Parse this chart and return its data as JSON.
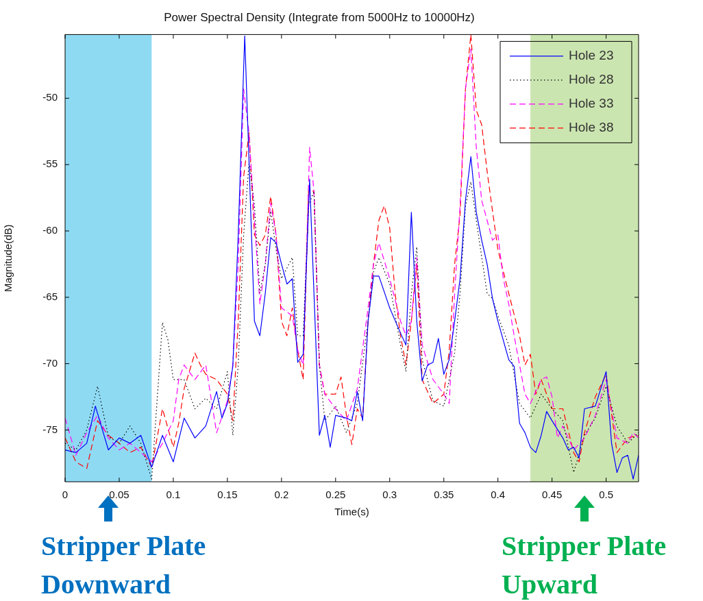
{
  "chart_data": {
    "type": "line",
    "title": "Power Spectral Density (Integrate from 5000Hz to 10000Hz)",
    "xlabel": "Time(s)",
    "ylabel": "Magnitude(dB)",
    "xlim": [
      0,
      0.53
    ],
    "xticks": [
      0,
      0.05,
      0.1,
      0.15,
      0.2,
      0.25,
      0.3,
      0.35,
      0.4,
      0.45,
      0.5
    ],
    "ylim": [
      -78.9,
      -45.2
    ],
    "yticks": [
      -75,
      -70,
      -65,
      -60,
      -55,
      -50
    ],
    "grid": false,
    "legend": "top right",
    "marker": "none",
    "bands": [
      {
        "axis": "x",
        "from": 0,
        "to": 0.08,
        "label": "Stripper Plate Downward",
        "color": "#8fdaf3"
      },
      {
        "axis": "x",
        "from": 0.43,
        "to": 0.53,
        "label": "Stripper Plate Upward",
        "color": "#cbe5b0"
      }
    ],
    "series": [
      {
        "name": "Hole 23",
        "color": "#0000ff",
        "line_style": "solid",
        "x": [
          0,
          0.01,
          0.02,
          0.028,
          0.04,
          0.05,
          0.06,
          0.07,
          0.08,
          0.09,
          0.1,
          0.11,
          0.12,
          0.13,
          0.14,
          0.145,
          0.15,
          0.155,
          0.16,
          0.166,
          0.17,
          0.175,
          0.18,
          0.185,
          0.19,
          0.195,
          0.2,
          0.205,
          0.21,
          0.215,
          0.22,
          0.226,
          0.23,
          0.235,
          0.24,
          0.245,
          0.25,
          0.26,
          0.265,
          0.27,
          0.275,
          0.28,
          0.285,
          0.29,
          0.3,
          0.31,
          0.315,
          0.32,
          0.325,
          0.33,
          0.335,
          0.34,
          0.345,
          0.35,
          0.355,
          0.36,
          0.365,
          0.37,
          0.375,
          0.38,
          0.385,
          0.39,
          0.395,
          0.4,
          0.41,
          0.415,
          0.42,
          0.425,
          0.43,
          0.435,
          0.44,
          0.445,
          0.45,
          0.46,
          0.465,
          0.47,
          0.475,
          0.48,
          0.49,
          0.5,
          0.505,
          0.51,
          0.515,
          0.52,
          0.525,
          0.53
        ],
        "values": [
          -76.5,
          -76.7,
          -76.0,
          -73.2,
          -76.5,
          -75.6,
          -76.0,
          -75.4,
          -77.8,
          -75.4,
          -77.4,
          -74.1,
          -75.6,
          -74.7,
          -72.1,
          -74.1,
          -73.0,
          -70.2,
          -60.3,
          -45.3,
          -54.8,
          -66.8,
          -67.9,
          -64.7,
          -60.5,
          -60.9,
          -62.5,
          -64.0,
          -63.6,
          -69.9,
          -69.3,
          -56.1,
          -64.7,
          -75.4,
          -73.9,
          -76.3,
          -73.9,
          -74.1,
          -74.3,
          -72.1,
          -74.3,
          -66.8,
          -63.4,
          -63.4,
          -65.8,
          -67.7,
          -68.6,
          -58.6,
          -66.8,
          -71.3,
          -70.1,
          -69.9,
          -68.1,
          -70.8,
          -69.7,
          -66.8,
          -63.6,
          -57.7,
          -54.4,
          -58.6,
          -60.7,
          -62.5,
          -65.1,
          -66.8,
          -69.7,
          -70.2,
          -74.5,
          -75.2,
          -76.3,
          -76.7,
          -75.4,
          -73.6,
          -74.3,
          -75.6,
          -76.5,
          -76.3,
          -77.1,
          -73.4,
          -73.2,
          -70.6,
          -76.0,
          -78.2,
          -77.1,
          -76.9,
          -78.7,
          -76.9
        ]
      },
      {
        "name": "Hole 28",
        "color": "#000000",
        "line_style": "dotted",
        "x": [
          0,
          0.01,
          0.02,
          0.03,
          0.04,
          0.05,
          0.06,
          0.07,
          0.08,
          0.09,
          0.095,
          0.1,
          0.11,
          0.12,
          0.13,
          0.14,
          0.15,
          0.155,
          0.16,
          0.165,
          0.17,
          0.175,
          0.18,
          0.185,
          0.19,
          0.195,
          0.2,
          0.21,
          0.215,
          0.22,
          0.225,
          0.23,
          0.235,
          0.24,
          0.25,
          0.26,
          0.27,
          0.28,
          0.285,
          0.29,
          0.3,
          0.31,
          0.315,
          0.32,
          0.325,
          0.33,
          0.34,
          0.35,
          0.36,
          0.365,
          0.37,
          0.375,
          0.38,
          0.39,
          0.395,
          0.4,
          0.41,
          0.42,
          0.43,
          0.44,
          0.45,
          0.46,
          0.47,
          0.48,
          0.49,
          0.5,
          0.51,
          0.52,
          0.53
        ],
        "values": [
          -76.0,
          -76.5,
          -75.0,
          -71.7,
          -75.5,
          -76.0,
          -74.7,
          -76.0,
          -78.7,
          -66.9,
          -68.2,
          -71.2,
          -71.2,
          -73.4,
          -72.6,
          -73.4,
          -70.6,
          -75.4,
          -70.1,
          -60.3,
          -54.8,
          -58.1,
          -64.7,
          -62.5,
          -58.5,
          -61.4,
          -63.6,
          -62.0,
          -67.9,
          -67.9,
          -58.1,
          -57.0,
          -70.1,
          -74.3,
          -73.2,
          -75.2,
          -73.0,
          -66.8,
          -63.1,
          -62.0,
          -64.0,
          -68.6,
          -70.6,
          -64.7,
          -61.2,
          -69.7,
          -72.8,
          -73.2,
          -69.2,
          -64.7,
          -58.1,
          -56.3,
          -59.2,
          -64.7,
          -65.1,
          -66.4,
          -68.6,
          -73.0,
          -74.1,
          -72.3,
          -73.4,
          -74.3,
          -78.2,
          -75.4,
          -74.1,
          -71.7,
          -74.7,
          -76.0,
          -75.2
        ]
      },
      {
        "name": "Hole 33",
        "color": "#ff00ff",
        "line_style": "dashed",
        "x": [
          0,
          0.01,
          0.02,
          0.03,
          0.04,
          0.05,
          0.06,
          0.07,
          0.08,
          0.09,
          0.1,
          0.105,
          0.11,
          0.12,
          0.13,
          0.14,
          0.15,
          0.155,
          0.16,
          0.165,
          0.17,
          0.175,
          0.18,
          0.185,
          0.19,
          0.195,
          0.2,
          0.21,
          0.215,
          0.22,
          0.226,
          0.23,
          0.235,
          0.24,
          0.25,
          0.26,
          0.27,
          0.28,
          0.285,
          0.29,
          0.3,
          0.31,
          0.315,
          0.32,
          0.325,
          0.33,
          0.34,
          0.35,
          0.355,
          0.36,
          0.365,
          0.37,
          0.375,
          0.38,
          0.385,
          0.39,
          0.395,
          0.4,
          0.405,
          0.41,
          0.415,
          0.42,
          0.425,
          0.43,
          0.44,
          0.445,
          0.45,
          0.455,
          0.46,
          0.47,
          0.48,
          0.49,
          0.5,
          0.51,
          0.52,
          0.525,
          0.53
        ],
        "values": [
          -74.1,
          -76.9,
          -75.2,
          -73.9,
          -75.6,
          -76.5,
          -76.0,
          -76.7,
          -77.4,
          -76.0,
          -74.3,
          -71.2,
          -70.1,
          -71.2,
          -70.1,
          -75.2,
          -72.8,
          -70.1,
          -62.5,
          -49.3,
          -52.6,
          -59.2,
          -65.5,
          -62.5,
          -57.9,
          -60.3,
          -65.8,
          -66.4,
          -69.0,
          -70.1,
          -53.7,
          -57.0,
          -70.1,
          -72.3,
          -73.4,
          -74.3,
          -71.9,
          -65.8,
          -62.5,
          -60.9,
          -63.6,
          -66.8,
          -67.9,
          -66.8,
          -62.0,
          -68.6,
          -71.2,
          -72.3,
          -73.0,
          -64.7,
          -58.1,
          -49.3,
          -46.3,
          -53.7,
          -57.7,
          -59.2,
          -60.7,
          -60.3,
          -63.6,
          -65.5,
          -67.9,
          -70.1,
          -72.3,
          -73.0,
          -71.2,
          -71.0,
          -72.5,
          -75.6,
          -74.7,
          -76.5,
          -75.6,
          -73.9,
          -71.2,
          -75.6,
          -76.0,
          -75.2,
          -75.6
        ]
      },
      {
        "name": "Hole 38",
        "color": "#ff0000",
        "line_style": "dashed",
        "x": [
          0,
          0.01,
          0.02,
          0.03,
          0.04,
          0.05,
          0.06,
          0.07,
          0.08,
          0.09,
          0.1,
          0.105,
          0.11,
          0.12,
          0.125,
          0.13,
          0.14,
          0.15,
          0.155,
          0.16,
          0.165,
          0.17,
          0.175,
          0.18,
          0.185,
          0.19,
          0.195,
          0.2,
          0.205,
          0.21,
          0.215,
          0.22,
          0.225,
          0.23,
          0.235,
          0.24,
          0.25,
          0.255,
          0.26,
          0.265,
          0.27,
          0.275,
          0.28,
          0.285,
          0.29,
          0.295,
          0.3,
          0.305,
          0.31,
          0.315,
          0.32,
          0.325,
          0.33,
          0.34,
          0.35,
          0.355,
          0.36,
          0.365,
          0.37,
          0.375,
          0.38,
          0.385,
          0.39,
          0.395,
          0.4,
          0.41,
          0.42,
          0.425,
          0.43,
          0.435,
          0.44,
          0.45,
          0.46,
          0.47,
          0.475,
          0.48,
          0.49,
          0.5,
          0.51,
          0.52,
          0.53
        ],
        "values": [
          -75.6,
          -77.4,
          -77.9,
          -74.3,
          -75.4,
          -76.0,
          -76.7,
          -76.3,
          -77.8,
          -73.4,
          -76.3,
          -74.5,
          -71.9,
          -69.2,
          -70.1,
          -70.8,
          -71.2,
          -72.3,
          -74.3,
          -66.8,
          -55.9,
          -52.6,
          -60.3,
          -61.1,
          -60.3,
          -57.4,
          -60.3,
          -66.8,
          -67.9,
          -65.8,
          -69.0,
          -71.2,
          -57.0,
          -57.0,
          -70.1,
          -72.3,
          -72.3,
          -71.0,
          -73.9,
          -76.1,
          -73.4,
          -74.1,
          -66.8,
          -62.5,
          -59.2,
          -58.1,
          -59.8,
          -64.7,
          -67.9,
          -70.1,
          -66.8,
          -62.5,
          -71.2,
          -73.0,
          -72.3,
          -69.0,
          -62.5,
          -58.8,
          -49.3,
          -45.2,
          -50.9,
          -52.0,
          -55.5,
          -58.5,
          -61.4,
          -64.7,
          -67.9,
          -70.1,
          -69.3,
          -72.3,
          -71.2,
          -73.4,
          -73.4,
          -76.7,
          -77.4,
          -75.2,
          -72.5,
          -70.8,
          -76.7,
          -75.6,
          -75.4
        ]
      }
    ]
  }
}
